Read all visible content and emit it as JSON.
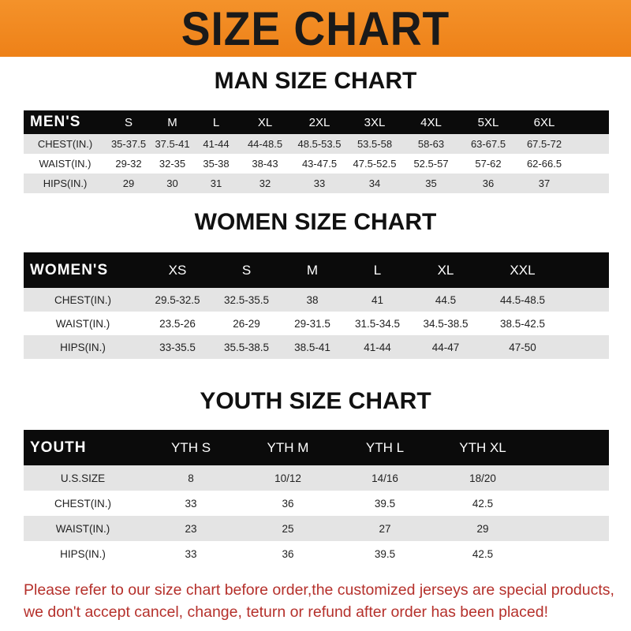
{
  "banner_title": "SIZE CHART",
  "tables": [
    {
      "key": "men",
      "title": "MAN SIZE CHART",
      "header_label": "MEN'S",
      "sizes": [
        "S",
        "M",
        "L",
        "XL",
        "2XL",
        "3XL",
        "4XL",
        "5XL",
        "6XL"
      ],
      "rows": [
        {
          "label": "CHEST(IN.)",
          "values": [
            "35-37.5",
            "37.5-41",
            "41-44",
            "44-48.5",
            "48.5-53.5",
            "53.5-58",
            "58-63",
            "63-67.5",
            "67.5-72"
          ]
        },
        {
          "label": "WAIST(IN.)",
          "values": [
            "29-32",
            "32-35",
            "35-38",
            "38-43",
            "43-47.5",
            "47.5-52.5",
            "52.5-57",
            "57-62",
            "62-66.5"
          ]
        },
        {
          "label": "HIPS(IN.)",
          "values": [
            "29",
            "30",
            "31",
            "32",
            "33",
            "34",
            "35",
            "36",
            "37"
          ]
        }
      ]
    },
    {
      "key": "women",
      "title": "WOMEN SIZE CHART",
      "header_label": "WOMEN'S",
      "sizes": [
        "XS",
        "S",
        "M",
        "L",
        "XL",
        "XXL"
      ],
      "rows": [
        {
          "label": "CHEST(IN.)",
          "values": [
            "29.5-32.5",
            "32.5-35.5",
            "38",
            "41",
            "44.5",
            "44.5-48.5"
          ]
        },
        {
          "label": "WAIST(IN.)",
          "values": [
            "23.5-26",
            "26-29",
            "29-31.5",
            "31.5-34.5",
            "34.5-38.5",
            "38.5-42.5"
          ]
        },
        {
          "label": "HIPS(IN.)",
          "values": [
            "33-35.5",
            "35.5-38.5",
            "38.5-41",
            "41-44",
            "44-47",
            "47-50"
          ]
        }
      ]
    },
    {
      "key": "youth",
      "title": "YOUTH SIZE CHART",
      "header_label": "YOUTH",
      "sizes": [
        "YTH S",
        "YTH M",
        "YTH L",
        "YTH XL"
      ],
      "rows": [
        {
          "label": "U.S.SIZE",
          "values": [
            "8",
            "10/12",
            "14/16",
            "18/20"
          ]
        },
        {
          "label": "CHEST(IN.)",
          "values": [
            "33",
            "36",
            "39.5",
            "42.5"
          ]
        },
        {
          "label": "WAIST(IN.)",
          "values": [
            "23",
            "25",
            "27",
            "29"
          ]
        },
        {
          "label": "HIPS(IN.)",
          "values": [
            "33",
            "36",
            "39.5",
            "42.5"
          ]
        }
      ]
    }
  ],
  "note": {
    "line1": "Please refer to our size chart before order,the customized jerseys are special products,",
    "line2": "we don't accept cancel, change, teturn or refund after order has been placed!"
  },
  "colors": {
    "banner": "#f08a20",
    "header_row": "#0b0b0b",
    "stripe": "#e4e4e4",
    "note_text": "#b5302b"
  }
}
